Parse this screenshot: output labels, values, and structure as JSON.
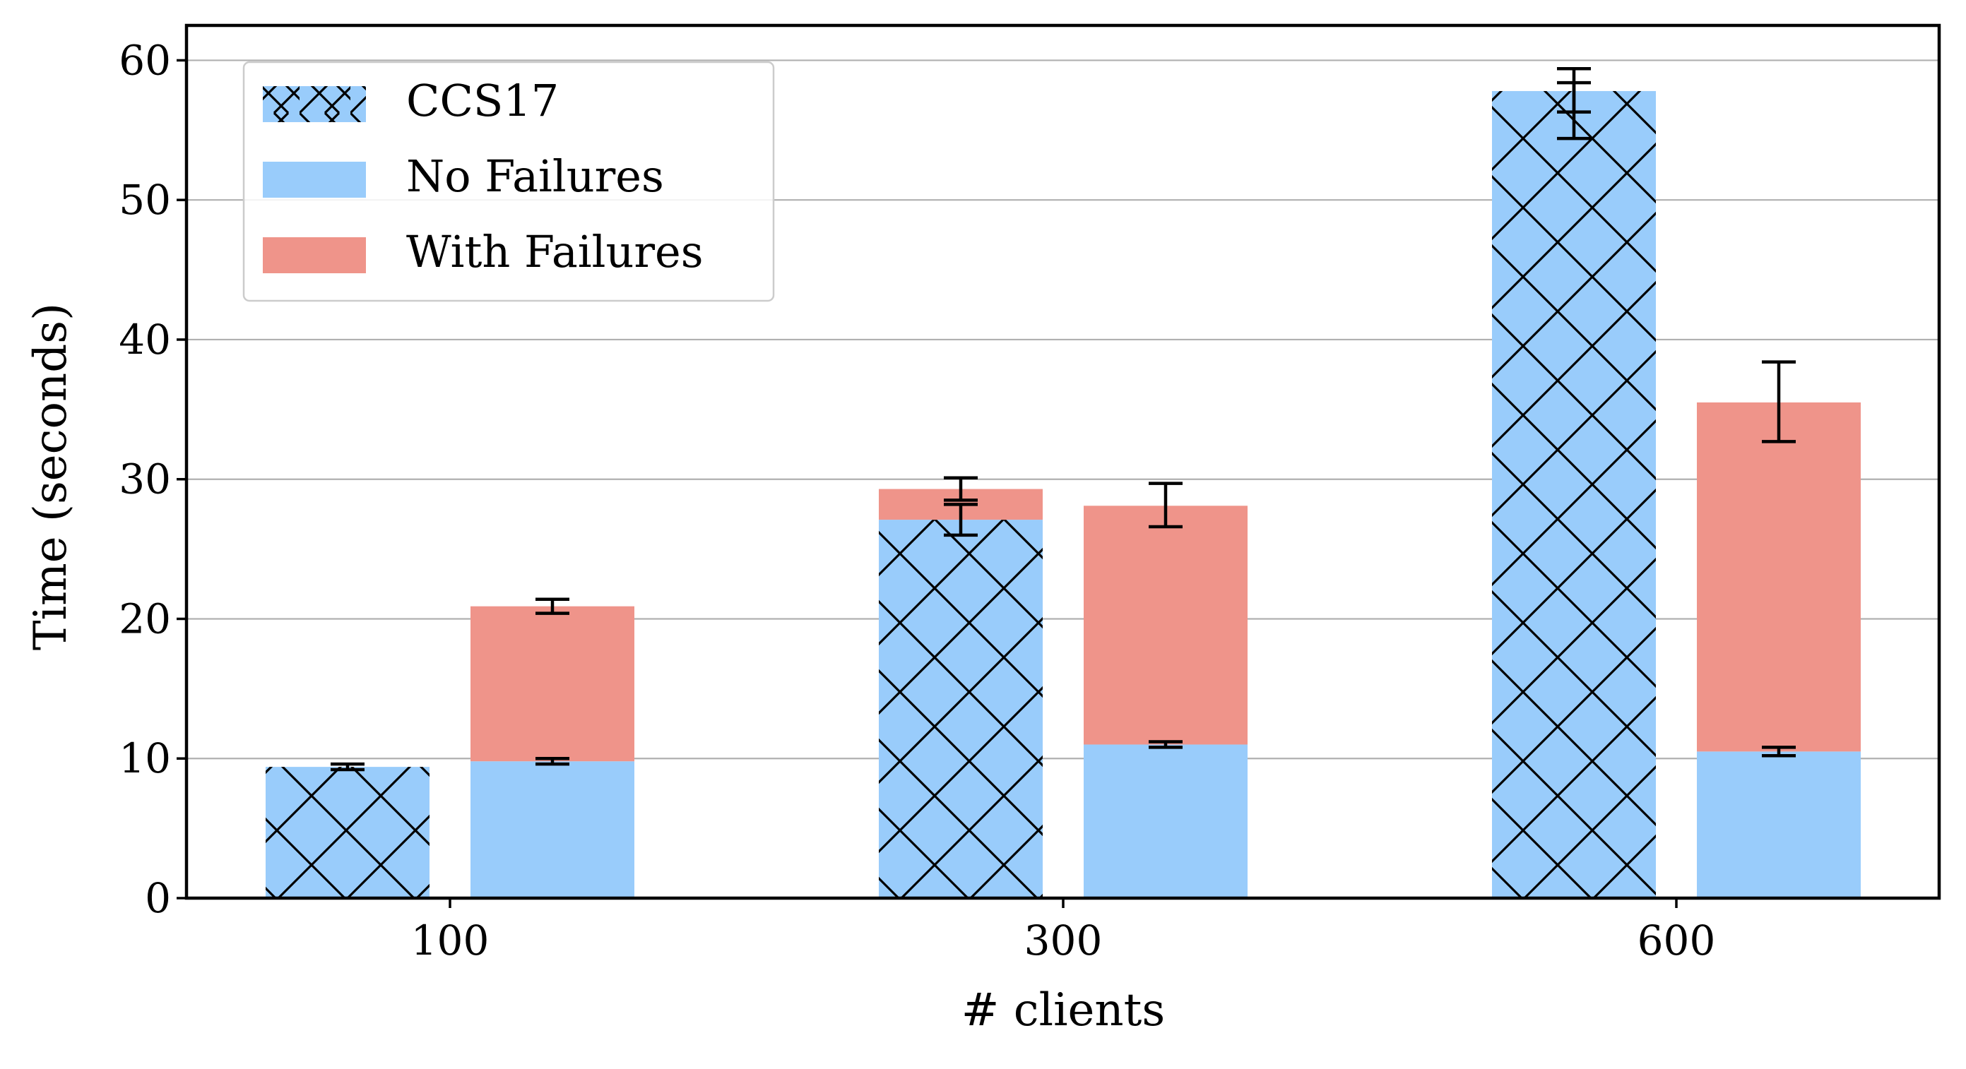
{
  "chart_data": {
    "type": "bar",
    "categories": [
      "100",
      "300",
      "600"
    ],
    "xlabel": "# clients",
    "ylabel": "Time (seconds)",
    "ylim": [
      0,
      62.5
    ],
    "yticks": [
      "0",
      "10",
      "20",
      "30",
      "40",
      "50",
      "60"
    ],
    "grid": "horizontal",
    "legend_position": "top-left",
    "colors": {
      "light_blue": "#99ccfb",
      "salmon": "#ef948a",
      "hatch": "#000000",
      "grid": "#b0b0b0"
    },
    "legend": [
      {
        "label": "CCS17",
        "style": "hatched-blue"
      },
      {
        "label": "No Failures",
        "style": "blue"
      },
      {
        "label": "With Failures",
        "style": "salmon"
      }
    ],
    "stacks": [
      {
        "category": "100",
        "series": "CCS17",
        "segments": [
          {
            "style": "hatched-blue",
            "from": 0,
            "to": 9.4
          }
        ],
        "errors": [
          {
            "center": 9.4,
            "low": 9.2,
            "high": 9.6
          }
        ]
      },
      {
        "category": "100",
        "series": "No Failures / With Failures",
        "segments": [
          {
            "style": "blue",
            "from": 0,
            "to": 9.8
          },
          {
            "style": "salmon",
            "from": 9.8,
            "to": 20.9
          }
        ],
        "errors": [
          {
            "center": 9.8,
            "low": 9.6,
            "high": 10.0
          },
          {
            "center": 20.9,
            "low": 20.4,
            "high": 21.4
          }
        ]
      },
      {
        "category": "300",
        "series": "CCS17",
        "segments": [
          {
            "style": "hatched-blue",
            "from": 0,
            "to": 27.1
          },
          {
            "style": "salmon",
            "from": 27.1,
            "to": 29.3
          }
        ],
        "errors": [
          {
            "center": 27.1,
            "low": 26.0,
            "high": 28.2
          },
          {
            "center": 29.3,
            "low": 28.5,
            "high": 30.1
          }
        ]
      },
      {
        "category": "300",
        "series": "No Failures / With Failures",
        "segments": [
          {
            "style": "blue",
            "from": 0,
            "to": 11.0
          },
          {
            "style": "salmon",
            "from": 11.0,
            "to": 28.1
          }
        ],
        "errors": [
          {
            "center": 11.0,
            "low": 10.8,
            "high": 11.2
          },
          {
            "center": 28.1,
            "low": 26.6,
            "high": 29.7
          }
        ]
      },
      {
        "category": "600",
        "series": "CCS17",
        "segments": [
          {
            "style": "hatched-blue",
            "from": 0,
            "to": 57.8
          }
        ],
        "errors": [
          {
            "center": 57.8,
            "low": 56.3,
            "high": 59.4
          },
          {
            "center": 56.4,
            "low": 54.4,
            "high": 58.4
          }
        ]
      },
      {
        "category": "600",
        "series": "No Failures / With Failures",
        "segments": [
          {
            "style": "blue",
            "from": 0,
            "to": 10.5
          },
          {
            "style": "salmon",
            "from": 10.5,
            "to": 35.5
          }
        ],
        "errors": [
          {
            "center": 10.5,
            "low": 10.2,
            "high": 10.8
          },
          {
            "center": 35.5,
            "low": 32.7,
            "high": 38.4
          }
        ]
      }
    ]
  }
}
